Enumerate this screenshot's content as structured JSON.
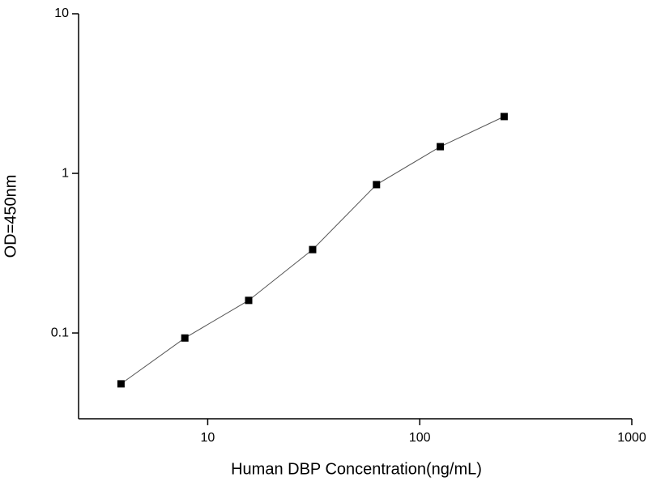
{
  "chart_data": {
    "type": "line",
    "x_label": "Human DBP Concentration(ng/mL)",
    "y_label": "OD=450nm",
    "series": [
      {
        "name": "OD",
        "color": "#000000",
        "x": [
          3.9,
          7.8,
          15.6,
          31.25,
          62.5,
          125,
          250
        ],
        "values": [
          0.048,
          0.093,
          0.16,
          0.333,
          0.85,
          1.47,
          2.27
        ]
      }
    ],
    "xlim": [
      2.46,
      1000
    ],
    "xticks": [
      10,
      100,
      1000
    ],
    "xscale": "log",
    "ylim": [
      0.029,
      10
    ],
    "yticks": [
      0.1,
      1,
      10
    ],
    "yscale": "log"
  }
}
